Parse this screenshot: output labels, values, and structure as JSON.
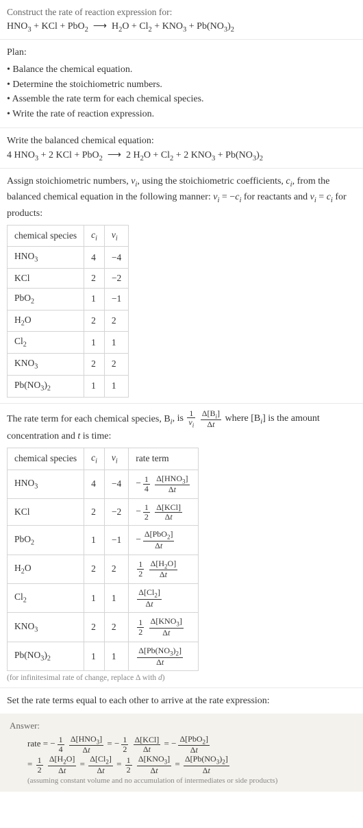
{
  "title": {
    "prompt": "Construct the rate of reaction expression for:",
    "equation_html": "HNO<sub>3</sub> + KCl + PbO<sub>2</sub> &nbsp;⟶&nbsp; H<sub>2</sub>O + Cl<sub>2</sub> + KNO<sub>3</sub> + Pb(NO<sub>3</sub>)<sub>2</sub>"
  },
  "plan": {
    "heading": "Plan:",
    "items": [
      "Balance the chemical equation.",
      "Determine the stoichiometric numbers.",
      "Assemble the rate term for each chemical species.",
      "Write the rate of reaction expression."
    ]
  },
  "balanced": {
    "heading": "Write the balanced chemical equation:",
    "equation_html": "4 HNO<sub>3</sub> + 2 KCl + PbO<sub>2</sub> &nbsp;⟶&nbsp; 2 H<sub>2</sub>O + Cl<sub>2</sub> + 2 KNO<sub>3</sub> + Pb(NO<sub>3</sub>)<sub>2</sub>"
  },
  "stoich": {
    "intro_html": "Assign stoichiometric numbers, <i>ν<sub>i</sub></i>, using the stoichiometric coefficients, <i>c<sub>i</sub></i>, from the balanced chemical equation in the following manner: <i>ν<sub>i</sub></i> = −<i>c<sub>i</sub></i> for reactants and <i>ν<sub>i</sub></i> = <i>c<sub>i</sub></i> for products:",
    "columns": [
      "chemical species",
      "c_i",
      "ν_i"
    ],
    "col_headers_html": [
      "chemical species",
      "<i>c<sub>i</sub></i>",
      "<i>ν<sub>i</sub></i>"
    ],
    "rows": [
      {
        "species_html": "HNO<sub>3</sub>",
        "c": 4,
        "nu": -4
      },
      {
        "species_html": "KCl",
        "c": 2,
        "nu": -2
      },
      {
        "species_html": "PbO<sub>2</sub>",
        "c": 1,
        "nu": -1
      },
      {
        "species_html": "H<sub>2</sub>O",
        "c": 2,
        "nu": 2
      },
      {
        "species_html": "Cl<sub>2</sub>",
        "c": 1,
        "nu": 1
      },
      {
        "species_html": "KNO<sub>3</sub>",
        "c": 2,
        "nu": 2
      },
      {
        "species_html": "Pb(NO<sub>3</sub>)<sub>2</sub>",
        "c": 1,
        "nu": 1
      }
    ]
  },
  "rate_terms": {
    "intro_pre": "The rate term for each chemical species, B",
    "intro_post_html": ", is <span class='frac'><span class='num'>1</span><span class='den'><i>ν<sub>i</sub></i></span></span> <span class='frac'><span class='num'>Δ[B<sub><i>i</i></sub>]</span><span class='den'>Δ<i>t</i></span></span> where [B<sub><i>i</i></sub>] is the amount concentration and <i>t</i> is time:",
    "columns": [
      "chemical species",
      "c_i",
      "ν_i",
      "rate term"
    ],
    "col_headers_html": [
      "chemical species",
      "<i>c<sub>i</sub></i>",
      "<i>ν<sub>i</sub></i>",
      "rate term"
    ],
    "rows": [
      {
        "species_html": "HNO<sub>3</sub>",
        "c": 4,
        "nu": -4,
        "term_html": "<span class='neg'>−</span><span class='frac'><span class='num'>1</span><span class='den'>4</span></span> <span class='frac'><span class='num'>Δ[HNO<sub>3</sub>]</span><span class='den'>Δ<i>t</i></span></span>"
      },
      {
        "species_html": "KCl",
        "c": 2,
        "nu": -2,
        "term_html": "<span class='neg'>−</span><span class='frac'><span class='num'>1</span><span class='den'>2</span></span> <span class='frac'><span class='num'>Δ[KCl]</span><span class='den'>Δ<i>t</i></span></span>"
      },
      {
        "species_html": "PbO<sub>2</sub>",
        "c": 1,
        "nu": -1,
        "term_html": "<span class='neg'>−</span><span class='frac'><span class='num'>Δ[PbO<sub>2</sub>]</span><span class='den'>Δ<i>t</i></span></span>"
      },
      {
        "species_html": "H<sub>2</sub>O",
        "c": 2,
        "nu": 2,
        "term_html": "<span class='frac'><span class='num'>1</span><span class='den'>2</span></span> <span class='frac'><span class='num'>Δ[H<sub>2</sub>O]</span><span class='den'>Δ<i>t</i></span></span>"
      },
      {
        "species_html": "Cl<sub>2</sub>",
        "c": 1,
        "nu": 1,
        "term_html": "<span class='frac'><span class='num'>Δ[Cl<sub>2</sub>]</span><span class='den'>Δ<i>t</i></span></span>"
      },
      {
        "species_html": "KNO<sub>3</sub>",
        "c": 2,
        "nu": 2,
        "term_html": "<span class='frac'><span class='num'>1</span><span class='den'>2</span></span> <span class='frac'><span class='num'>Δ[KNO<sub>3</sub>]</span><span class='den'>Δ<i>t</i></span></span>"
      },
      {
        "species_html": "Pb(NO<sub>3</sub>)<sub>2</sub>",
        "c": 1,
        "nu": 1,
        "term_html": "<span class='frac'><span class='num'>Δ[Pb(NO<sub>3</sub>)<sub>2</sub>]</span><span class='den'>Δ<i>t</i></span></span>"
      }
    ],
    "footnote_html": "(for infinitesimal rate of change, replace Δ with <i>d</i>)"
  },
  "setequal": {
    "text": "Set the rate terms equal to each other to arrive at the rate expression:"
  },
  "answer": {
    "label": "Answer:",
    "line1_html": "rate = <span class='neg'>−</span><span class='frac'><span class='num'>1</span><span class='den'>4</span></span> <span class='frac'><span class='num'>Δ[HNO<sub>3</sub>]</span><span class='den'>Δ<i>t</i></span></span> = <span class='neg'>−</span><span class='frac'><span class='num'>1</span><span class='den'>2</span></span> <span class='frac'><span class='num'>Δ[KCl]</span><span class='den'>Δ<i>t</i></span></span> = <span class='neg'>−</span><span class='frac'><span class='num'>Δ[PbO<sub>2</sub>]</span><span class='den'>Δ<i>t</i></span></span>",
    "line2_html": "= <span class='frac'><span class='num'>1</span><span class='den'>2</span></span> <span class='frac'><span class='num'>Δ[H<sub>2</sub>O]</span><span class='den'>Δ<i>t</i></span></span> = <span class='frac'><span class='num'>Δ[Cl<sub>2</sub>]</span><span class='den'>Δ<i>t</i></span></span> = <span class='frac'><span class='num'>1</span><span class='den'>2</span></span> <span class='frac'><span class='num'>Δ[KNO<sub>3</sub>]</span><span class='den'>Δ<i>t</i></span></span> = <span class='frac'><span class='num'>Δ[Pb(NO<sub>3</sub>)<sub>2</sub>]</span><span class='den'>Δ<i>t</i></span></span>",
    "note": "(assuming constant volume and no accumulation of intermediates or side products)"
  },
  "colors": {
    "border": "#e8e8e8",
    "table_border": "#d4d4d4",
    "muted": "#666666",
    "footnote": "#888888",
    "answer_bg": "#f4f2ed",
    "text": "#333333"
  }
}
